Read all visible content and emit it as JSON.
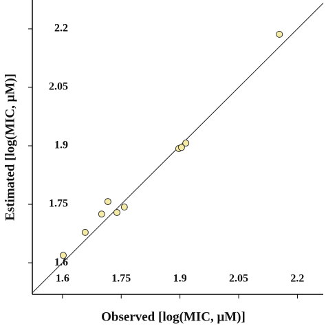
{
  "chart_data": {
    "type": "scatter",
    "x_label": "Observed [log(MIC, μM)]",
    "y_label": "Estimated [log(MIC, μM)]",
    "x": [
      1.602,
      1.658,
      1.7,
      1.716,
      1.739,
      1.758,
      1.897,
      1.904,
      1.915,
      2.154
    ],
    "values": [
      1.619,
      1.678,
      1.725,
      1.757,
      1.729,
      1.743,
      1.893,
      1.896,
      1.907,
      2.186
    ],
    "color": "#f5eba4",
    "xlim": [
      1.523,
      2.266
    ],
    "ylim": [
      1.519,
      2.274
    ],
    "xticks": [
      1.6,
      1.75,
      1.9,
      2.05,
      2.2
    ],
    "yticks": [
      1.6,
      1.75,
      1.9,
      2.05,
      2.2
    ],
    "identity_line": true
  }
}
